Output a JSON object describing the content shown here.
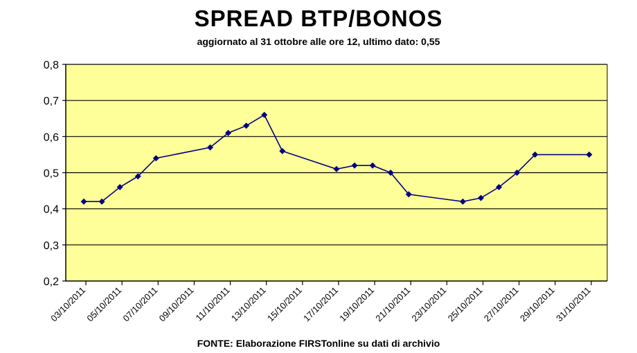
{
  "chart_data": {
    "type": "line",
    "title": "SPREAD BTP/BONOS",
    "subtitle": "aggiornato al 31 ottobre alle ore 12, ultimo dato: 0,55",
    "source": "FONTE: Elaborazione FIRSTonline su dati di archivio",
    "xlabel": "",
    "ylabel": "",
    "ylim": [
      0.2,
      0.8
    ],
    "yticks": [
      "0,2",
      "0,3",
      "0,4",
      "0,5",
      "0,6",
      "0,7",
      "0,8"
    ],
    "xlim": [
      "2011-10-02",
      "2011-11-01"
    ],
    "xticks": [
      "03/10/2011",
      "05/10/2011",
      "07/10/2011",
      "09/10/2011",
      "11/10/2011",
      "13/10/2011",
      "15/10/2011",
      "17/10/2011",
      "19/10/2011",
      "21/10/2011",
      "23/10/2011",
      "25/10/2011",
      "27/10/2011",
      "29/10/2011",
      "31/10/2011"
    ],
    "grid": "horizontal",
    "legend": "none",
    "colors": {
      "plot_background": "#FFFF99",
      "line": "#000080",
      "marker": "#000080",
      "grid": "#000000"
    },
    "series": [
      {
        "points": [
          {
            "x": "2011-10-03",
            "y": 0.42
          },
          {
            "x": "2011-10-04",
            "y": 0.42
          },
          {
            "x": "2011-10-05",
            "y": 0.46
          },
          {
            "x": "2011-10-06",
            "y": 0.49
          },
          {
            "x": "2011-10-07",
            "y": 0.54
          },
          {
            "x": "2011-10-10",
            "y": 0.57
          },
          {
            "x": "2011-10-11",
            "y": 0.61
          },
          {
            "x": "2011-10-12",
            "y": 0.63
          },
          {
            "x": "2011-10-13",
            "y": 0.66
          },
          {
            "x": "2011-10-14",
            "y": 0.56
          },
          {
            "x": "2011-10-17",
            "y": 0.51
          },
          {
            "x": "2011-10-18",
            "y": 0.52
          },
          {
            "x": "2011-10-19",
            "y": 0.52
          },
          {
            "x": "2011-10-20",
            "y": 0.5
          },
          {
            "x": "2011-10-21",
            "y": 0.44
          },
          {
            "x": "2011-10-24",
            "y": 0.42
          },
          {
            "x": "2011-10-25",
            "y": 0.43
          },
          {
            "x": "2011-10-26",
            "y": 0.46
          },
          {
            "x": "2011-10-27",
            "y": 0.5
          },
          {
            "x": "2011-10-28",
            "y": 0.55
          },
          {
            "x": "2011-10-31",
            "y": 0.55
          }
        ]
      }
    ]
  }
}
